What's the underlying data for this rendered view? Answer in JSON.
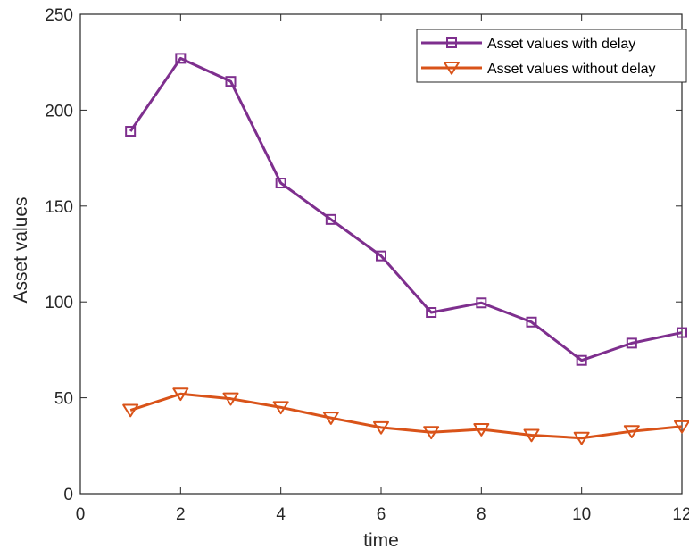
{
  "chart_data": {
    "type": "line",
    "title": "",
    "xlabel": "time",
    "ylabel": "Asset values",
    "xlim": [
      0,
      12
    ],
    "ylim": [
      0,
      250
    ],
    "xticks": [
      0,
      2,
      4,
      6,
      8,
      10,
      12
    ],
    "yticks": [
      0,
      50,
      100,
      150,
      200,
      250
    ],
    "grid": false,
    "legend_position": "top-right",
    "x": [
      1,
      2,
      3,
      4,
      5,
      6,
      7,
      8,
      9,
      10,
      11,
      12
    ],
    "series": [
      {
        "name": "Asset values with delay",
        "color": "#7E2F8E",
        "marker": "square",
        "values": [
          189,
          227,
          215,
          162,
          143,
          124,
          94.5,
          99.5,
          89.5,
          69.5,
          78.5,
          84
        ]
      },
      {
        "name": "Asset values without delay",
        "color": "#D95319",
        "marker": "triangle-down",
        "values": [
          43.5,
          52,
          49.5,
          45,
          39.5,
          34.5,
          32,
          33.5,
          30.5,
          29,
          32.5,
          35
        ]
      }
    ]
  }
}
